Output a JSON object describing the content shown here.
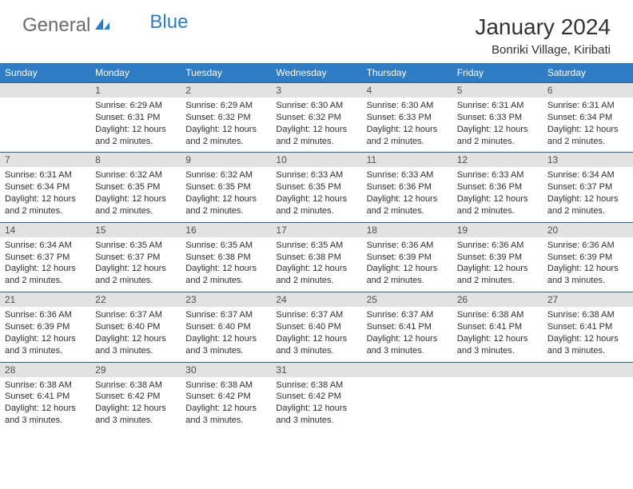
{
  "logo": {
    "part1": "General",
    "part2": "Blue"
  },
  "title": "January 2024",
  "location": "Bonriki Village, Kiribati",
  "colors": {
    "header_bg": "#2f7bc4",
    "header_text": "#ffffff",
    "daynum_bg": "#e2e2e2",
    "daynum_text": "#505050",
    "row_border": "#2f5f8f",
    "body_text": "#2e2e2e",
    "logo_gray": "#6b6b6b",
    "logo_blue": "#2f7bc4"
  },
  "day_headers": [
    "Sunday",
    "Monday",
    "Tuesday",
    "Wednesday",
    "Thursday",
    "Friday",
    "Saturday"
  ],
  "weeks": [
    {
      "nums": [
        "",
        "1",
        "2",
        "3",
        "4",
        "5",
        "6"
      ],
      "cells": [
        null,
        {
          "sunrise": "6:29 AM",
          "sunset": "6:31 PM",
          "daylight": "12 hours and 2 minutes."
        },
        {
          "sunrise": "6:29 AM",
          "sunset": "6:32 PM",
          "daylight": "12 hours and 2 minutes."
        },
        {
          "sunrise": "6:30 AM",
          "sunset": "6:32 PM",
          "daylight": "12 hours and 2 minutes."
        },
        {
          "sunrise": "6:30 AM",
          "sunset": "6:33 PM",
          "daylight": "12 hours and 2 minutes."
        },
        {
          "sunrise": "6:31 AM",
          "sunset": "6:33 PM",
          "daylight": "12 hours and 2 minutes."
        },
        {
          "sunrise": "6:31 AM",
          "sunset": "6:34 PM",
          "daylight": "12 hours and 2 minutes."
        }
      ]
    },
    {
      "nums": [
        "7",
        "8",
        "9",
        "10",
        "11",
        "12",
        "13"
      ],
      "cells": [
        {
          "sunrise": "6:31 AM",
          "sunset": "6:34 PM",
          "daylight": "12 hours and 2 minutes."
        },
        {
          "sunrise": "6:32 AM",
          "sunset": "6:35 PM",
          "daylight": "12 hours and 2 minutes."
        },
        {
          "sunrise": "6:32 AM",
          "sunset": "6:35 PM",
          "daylight": "12 hours and 2 minutes."
        },
        {
          "sunrise": "6:33 AM",
          "sunset": "6:35 PM",
          "daylight": "12 hours and 2 minutes."
        },
        {
          "sunrise": "6:33 AM",
          "sunset": "6:36 PM",
          "daylight": "12 hours and 2 minutes."
        },
        {
          "sunrise": "6:33 AM",
          "sunset": "6:36 PM",
          "daylight": "12 hours and 2 minutes."
        },
        {
          "sunrise": "6:34 AM",
          "sunset": "6:37 PM",
          "daylight": "12 hours and 2 minutes."
        }
      ]
    },
    {
      "nums": [
        "14",
        "15",
        "16",
        "17",
        "18",
        "19",
        "20"
      ],
      "cells": [
        {
          "sunrise": "6:34 AM",
          "sunset": "6:37 PM",
          "daylight": "12 hours and 2 minutes."
        },
        {
          "sunrise": "6:35 AM",
          "sunset": "6:37 PM",
          "daylight": "12 hours and 2 minutes."
        },
        {
          "sunrise": "6:35 AM",
          "sunset": "6:38 PM",
          "daylight": "12 hours and 2 minutes."
        },
        {
          "sunrise": "6:35 AM",
          "sunset": "6:38 PM",
          "daylight": "12 hours and 2 minutes."
        },
        {
          "sunrise": "6:36 AM",
          "sunset": "6:39 PM",
          "daylight": "12 hours and 2 minutes."
        },
        {
          "sunrise": "6:36 AM",
          "sunset": "6:39 PM",
          "daylight": "12 hours and 2 minutes."
        },
        {
          "sunrise": "6:36 AM",
          "sunset": "6:39 PM",
          "daylight": "12 hours and 3 minutes."
        }
      ]
    },
    {
      "nums": [
        "21",
        "22",
        "23",
        "24",
        "25",
        "26",
        "27"
      ],
      "cells": [
        {
          "sunrise": "6:36 AM",
          "sunset": "6:39 PM",
          "daylight": "12 hours and 3 minutes."
        },
        {
          "sunrise": "6:37 AM",
          "sunset": "6:40 PM",
          "daylight": "12 hours and 3 minutes."
        },
        {
          "sunrise": "6:37 AM",
          "sunset": "6:40 PM",
          "daylight": "12 hours and 3 minutes."
        },
        {
          "sunrise": "6:37 AM",
          "sunset": "6:40 PM",
          "daylight": "12 hours and 3 minutes."
        },
        {
          "sunrise": "6:37 AM",
          "sunset": "6:41 PM",
          "daylight": "12 hours and 3 minutes."
        },
        {
          "sunrise": "6:38 AM",
          "sunset": "6:41 PM",
          "daylight": "12 hours and 3 minutes."
        },
        {
          "sunrise": "6:38 AM",
          "sunset": "6:41 PM",
          "daylight": "12 hours and 3 minutes."
        }
      ]
    },
    {
      "nums": [
        "28",
        "29",
        "30",
        "31",
        "",
        "",
        ""
      ],
      "cells": [
        {
          "sunrise": "6:38 AM",
          "sunset": "6:41 PM",
          "daylight": "12 hours and 3 minutes."
        },
        {
          "sunrise": "6:38 AM",
          "sunset": "6:42 PM",
          "daylight": "12 hours and 3 minutes."
        },
        {
          "sunrise": "6:38 AM",
          "sunset": "6:42 PM",
          "daylight": "12 hours and 3 minutes."
        },
        {
          "sunrise": "6:38 AM",
          "sunset": "6:42 PM",
          "daylight": "12 hours and 3 minutes."
        },
        null,
        null,
        null
      ]
    }
  ]
}
